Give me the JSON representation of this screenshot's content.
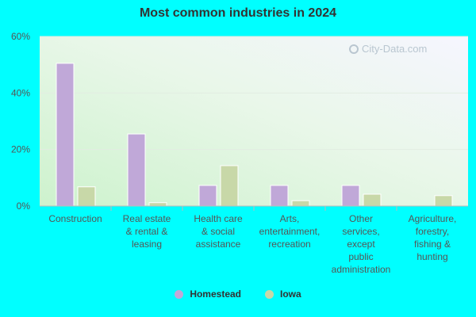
{
  "chart_data": {
    "type": "bar",
    "title": "Most common industries in 2024",
    "categories": [
      [
        "Construction"
      ],
      [
        "Real estate",
        "& rental &",
        "leasing"
      ],
      [
        "Health care",
        "& social",
        "assistance"
      ],
      [
        "Arts,",
        "entertainment,",
        "recreation"
      ],
      [
        "Other",
        "services,",
        "except",
        "public",
        "administration"
      ],
      [
        "Agriculture,",
        "forestry,",
        "fishing &",
        "hunting"
      ]
    ],
    "series": [
      {
        "name": "Homestead",
        "color": "#c0a8d8",
        "values": [
          50.5,
          25.5,
          7.3,
          7.3,
          7.3,
          0
        ]
      },
      {
        "name": "Iowa",
        "color": "#c8d8a8",
        "values": [
          6.8,
          1.2,
          14.3,
          1.9,
          4.2,
          3.7
        ]
      }
    ],
    "ylim": [
      0,
      60
    ],
    "yticks": [
      0,
      20,
      40,
      60
    ],
    "ytick_labels": [
      "0%",
      "20%",
      "40%",
      "60%"
    ],
    "grid": true,
    "legend_position": "bottom-center"
  },
  "watermark": {
    "text": "City-Data.com"
  }
}
